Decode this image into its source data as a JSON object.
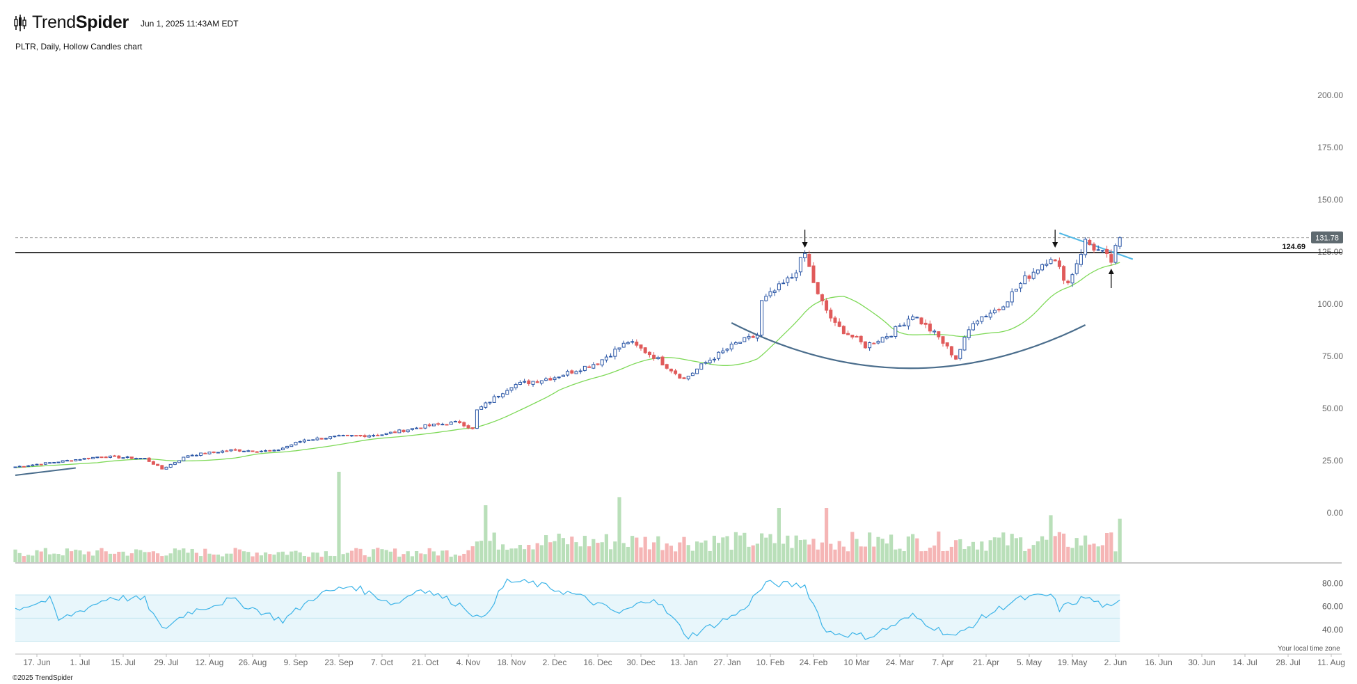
{
  "header": {
    "brand_light": "Trend",
    "brand_bold": "Spider",
    "timestamp": "Jun 1, 2025 11:43AM EDT",
    "chart_title": "PLTR, Daily, Hollow Candles chart"
  },
  "footer": {
    "copyright": "©2025 TrendSpider",
    "timezone_note": "Your local time zone"
  },
  "colors": {
    "up": "#2a56a6",
    "down": "#e05a5a",
    "sma": "#7ed957",
    "rsi": "#3cb4e8",
    "rsi_band": "#e8f6fb",
    "cup_arc": "#4a6d8c",
    "resistance": "#111111",
    "trendline": "#4fb8e6",
    "vol_up": "#b9dfb9",
    "vol_down": "#f5b5b5"
  },
  "chart_data": {
    "type": "candlestick",
    "symbol": "PLTR",
    "interval": "Daily",
    "style": "Hollow Candles",
    "y_axis": {
      "min": 0,
      "max": 200,
      "ticks": [
        "200.00",
        "175.00",
        "150.00",
        "125.00",
        "100.00",
        "75.00",
        "50.00",
        "25.00",
        "0.00"
      ],
      "tick_values": [
        200,
        175,
        150,
        125,
        100,
        75,
        50,
        25,
        0
      ]
    },
    "x_axis": {
      "labels": [
        "17. Jun",
        "1. Jul",
        "15. Jul",
        "29. Jul",
        "12. Aug",
        "26. Aug",
        "9. Sep",
        "23. Sep",
        "7. Oct",
        "21. Oct",
        "4. Nov",
        "18. Nov",
        "2. Dec",
        "16. Dec",
        "30. Dec",
        "13. Jan",
        "27. Jan",
        "10. Feb",
        "24. Feb",
        "10 Mar",
        "24. Mar",
        "7. Apr",
        "21. Apr",
        "5. May",
        "19. May",
        "2. Jun",
        "16. Jun",
        "30. Jun",
        "14. Jul",
        "28. Jul",
        "11. Aug"
      ],
      "label_bar_index": [
        5,
        15,
        25,
        35,
        45,
        55,
        65,
        75,
        85,
        95,
        105,
        115,
        125,
        135,
        145,
        155,
        165,
        175,
        185,
        195,
        205,
        215,
        225,
        235,
        245,
        255,
        265,
        275,
        285,
        295,
        305
      ]
    },
    "last_price": {
      "value": 131.78,
      "label": "131.78"
    },
    "resistance": {
      "value": 124.69,
      "label": "124.69"
    },
    "anchors": [
      {
        "bar": 0,
        "close": 22.0
      },
      {
        "bar": 10,
        "close": 24.5
      },
      {
        "bar": 20,
        "close": 27.0
      },
      {
        "bar": 30,
        "close": 26.0
      },
      {
        "bar": 34,
        "close": 21.0
      },
      {
        "bar": 40,
        "close": 27.5
      },
      {
        "bar": 50,
        "close": 30.0
      },
      {
        "bar": 60,
        "close": 29.5
      },
      {
        "bar": 67,
        "close": 35.0
      },
      {
        "bar": 75,
        "close": 36.5
      },
      {
        "bar": 85,
        "close": 37.5
      },
      {
        "bar": 95,
        "close": 41.5
      },
      {
        "bar": 103,
        "close": 43.5
      },
      {
        "bar": 106,
        "close": 40.0
      },
      {
        "bar": 107,
        "close": 49.0
      },
      {
        "bar": 115,
        "close": 61.0
      },
      {
        "bar": 125,
        "close": 65.0
      },
      {
        "bar": 135,
        "close": 72.0
      },
      {
        "bar": 142,
        "close": 82.0
      },
      {
        "bar": 148,
        "close": 75.0
      },
      {
        "bar": 155,
        "close": 64.0
      },
      {
        "bar": 160,
        "close": 72.0
      },
      {
        "bar": 167,
        "close": 81.0
      },
      {
        "bar": 172,
        "close": 85.0
      },
      {
        "bar": 173,
        "close": 101.0
      },
      {
        "bar": 180,
        "close": 113.0
      },
      {
        "bar": 183,
        "close": 124.0
      },
      {
        "bar": 186,
        "close": 104.0
      },
      {
        "bar": 190,
        "close": 90.0
      },
      {
        "bar": 197,
        "close": 80.0
      },
      {
        "bar": 203,
        "close": 86.0
      },
      {
        "bar": 208,
        "close": 95.0
      },
      {
        "bar": 214,
        "close": 84.0
      },
      {
        "bar": 218,
        "close": 74.0
      },
      {
        "bar": 222,
        "close": 92.0
      },
      {
        "bar": 228,
        "close": 98.0
      },
      {
        "bar": 234,
        "close": 112.0
      },
      {
        "bar": 240,
        "close": 123.0
      },
      {
        "bar": 244,
        "close": 110.0
      },
      {
        "bar": 248,
        "close": 130.0
      },
      {
        "bar": 252,
        "close": 124.0
      },
      {
        "bar": 254,
        "close": 120.5
      },
      {
        "bar": 256,
        "close": 131.78
      }
    ],
    "volume_spikes": [
      {
        "bar": 75,
        "rel": 1.0
      },
      {
        "bar": 109,
        "rel": 0.63
      },
      {
        "bar": 140,
        "rel": 0.72
      },
      {
        "bar": 177,
        "rel": 0.6
      },
      {
        "bar": 188,
        "rel": 0.6
      },
      {
        "bar": 240,
        "rel": 0.52
      },
      {
        "bar": 256,
        "rel": 0.48
      }
    ],
    "rsi": {
      "ticks": [
        "80.00",
        "60.00",
        "40.00"
      ],
      "tick_values": [
        80,
        60,
        40
      ],
      "band": [
        30,
        70
      ],
      "midline": 50,
      "anchors": [
        {
          "bar": 0,
          "v": 58
        },
        {
          "bar": 8,
          "v": 66
        },
        {
          "bar": 10,
          "v": 48
        },
        {
          "bar": 22,
          "v": 68
        },
        {
          "bar": 30,
          "v": 66
        },
        {
          "bar": 34,
          "v": 40
        },
        {
          "bar": 40,
          "v": 55
        },
        {
          "bar": 50,
          "v": 66
        },
        {
          "bar": 62,
          "v": 48
        },
        {
          "bar": 70,
          "v": 70
        },
        {
          "bar": 78,
          "v": 78
        },
        {
          "bar": 88,
          "v": 62
        },
        {
          "bar": 94,
          "v": 76
        },
        {
          "bar": 104,
          "v": 60
        },
        {
          "bar": 108,
          "v": 48
        },
        {
          "bar": 114,
          "v": 82
        },
        {
          "bar": 120,
          "v": 80
        },
        {
          "bar": 130,
          "v": 70
        },
        {
          "bar": 140,
          "v": 54
        },
        {
          "bar": 148,
          "v": 68
        },
        {
          "bar": 156,
          "v": 34
        },
        {
          "bar": 168,
          "v": 55
        },
        {
          "bar": 174,
          "v": 80
        },
        {
          "bar": 183,
          "v": 78
        },
        {
          "bar": 188,
          "v": 38
        },
        {
          "bar": 198,
          "v": 34
        },
        {
          "bar": 208,
          "v": 52
        },
        {
          "bar": 214,
          "v": 40
        },
        {
          "bar": 218,
          "v": 34
        },
        {
          "bar": 224,
          "v": 50
        },
        {
          "bar": 232,
          "v": 66
        },
        {
          "bar": 240,
          "v": 70
        },
        {
          "bar": 242,
          "v": 58
        },
        {
          "bar": 248,
          "v": 68
        },
        {
          "bar": 254,
          "v": 58
        },
        {
          "bar": 256,
          "v": 64
        }
      ]
    },
    "total_bars": 257
  }
}
